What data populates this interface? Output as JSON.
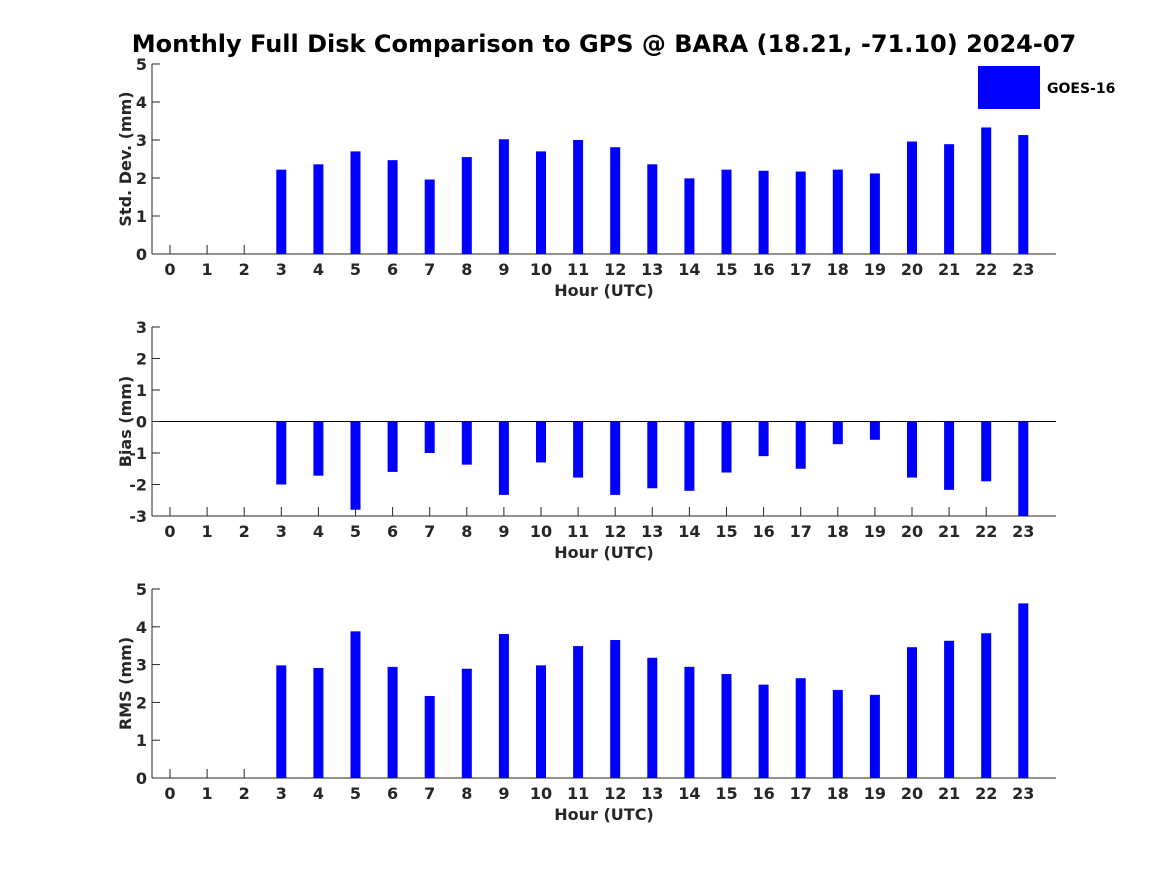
{
  "title": "Monthly Full Disk Comparison to GPS @ BARA (18.21, -71.10) 2024-07",
  "legend": {
    "label": "GOES-16",
    "color": "#0000ff",
    "position": "top-right"
  },
  "chart_data": [
    {
      "type": "bar",
      "name": "std-dev",
      "ylabel": "Std. Dev. (mm)",
      "xlabel": "Hour (UTC)",
      "ylim": [
        0,
        5
      ],
      "yticks": [
        0,
        1,
        2,
        3,
        4,
        5
      ],
      "categories": [
        "0",
        "1",
        "2",
        "3",
        "4",
        "5",
        "6",
        "7",
        "8",
        "9",
        "10",
        "11",
        "12",
        "13",
        "14",
        "15",
        "16",
        "17",
        "18",
        "19",
        "20",
        "21",
        "22",
        "23"
      ],
      "series": [
        {
          "name": "GOES-16",
          "values": [
            null,
            null,
            null,
            2.22,
            2.36,
            2.7,
            2.47,
            1.96,
            2.55,
            3.02,
            2.7,
            3.0,
            2.81,
            2.36,
            1.99,
            2.22,
            2.19,
            2.17,
            2.22,
            2.12,
            2.96,
            2.89,
            3.33,
            3.13
          ]
        }
      ]
    },
    {
      "type": "bar",
      "name": "bias",
      "ylabel": "Bias (mm)",
      "xlabel": "Hour (UTC)",
      "ylim": [
        -3,
        3
      ],
      "yticks": [
        -3,
        -2,
        -1,
        0,
        1,
        2,
        3
      ],
      "categories": [
        "0",
        "1",
        "2",
        "3",
        "4",
        "5",
        "6",
        "7",
        "8",
        "9",
        "10",
        "11",
        "12",
        "13",
        "14",
        "15",
        "16",
        "17",
        "18",
        "19",
        "20",
        "21",
        "22",
        "23"
      ],
      "series": [
        {
          "name": "GOES-16",
          "values": [
            null,
            null,
            null,
            -2.0,
            -1.72,
            -2.8,
            -1.6,
            -1.0,
            -1.37,
            -2.33,
            -1.3,
            -1.78,
            -2.33,
            -2.12,
            -2.2,
            -1.62,
            -1.1,
            -1.5,
            -0.72,
            -0.58,
            -1.78,
            -2.17,
            -1.9,
            -3.0
          ]
        }
      ]
    },
    {
      "type": "bar",
      "name": "rms",
      "ylabel": "RMS (mm)",
      "xlabel": "Hour (UTC)",
      "ylim": [
        0,
        5
      ],
      "yticks": [
        0,
        1,
        2,
        3,
        4,
        5
      ],
      "categories": [
        "0",
        "1",
        "2",
        "3",
        "4",
        "5",
        "6",
        "7",
        "8",
        "9",
        "10",
        "11",
        "12",
        "13",
        "14",
        "15",
        "16",
        "17",
        "18",
        "19",
        "20",
        "21",
        "22",
        "23"
      ],
      "series": [
        {
          "name": "GOES-16",
          "values": [
            null,
            null,
            null,
            2.98,
            2.91,
            3.88,
            2.94,
            2.17,
            2.89,
            3.81,
            2.98,
            3.49,
            3.65,
            3.18,
            2.94,
            2.75,
            2.47,
            2.64,
            2.33,
            2.2,
            3.46,
            3.63,
            3.83,
            4.62
          ]
        }
      ]
    }
  ]
}
